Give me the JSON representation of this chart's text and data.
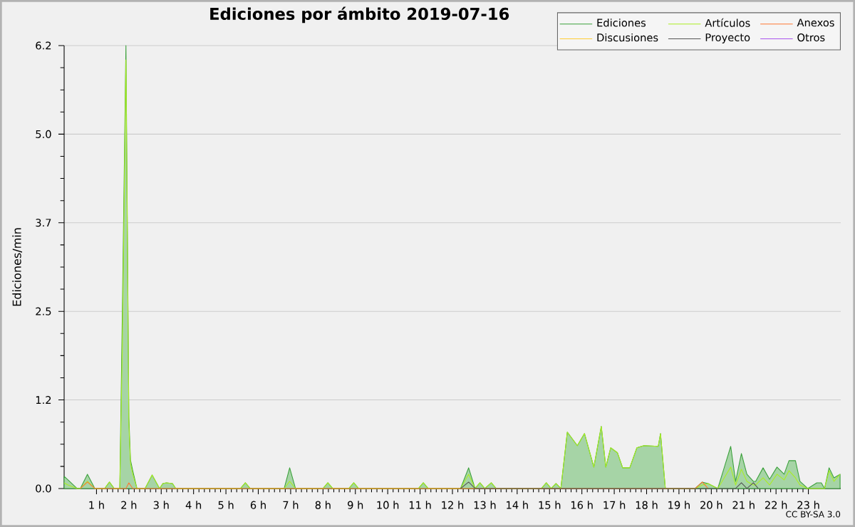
{
  "chart_data": {
    "type": "line",
    "title": "Ediciones por ámbito  2019-07-16",
    "ylabel": "Ediciones/min",
    "annotations": [
      "CC BY-SA 3.0"
    ],
    "x": [
      0,
      0.12,
      0.4,
      0.5,
      0.72,
      0.95,
      1.25,
      1.4,
      1.55,
      1.72,
      1.8,
      1.91,
      2.0,
      2.05,
      2.12,
      2.25,
      2.5,
      2.72,
      2.95,
      3.05,
      3.16,
      3.35,
      3.45,
      5.45,
      5.6,
      5.75,
      6.8,
      6.97,
      7.15,
      8.0,
      8.15,
      8.3,
      8.8,
      8.95,
      9.1,
      10.95,
      11.1,
      11.25,
      12.25,
      12.5,
      12.7,
      12.85,
      13.0,
      13.2,
      13.35,
      14.75,
      14.9,
      15.05,
      15.2,
      15.35,
      15.55,
      15.86,
      16.08,
      16.37,
      16.6,
      16.74,
      16.89,
      17.1,
      17.26,
      17.48,
      17.7,
      17.92,
      18.36,
      18.43,
      18.58,
      19.5,
      19.72,
      19.9,
      20.2,
      20.6,
      20.75,
      20.93,
      21.1,
      21.3,
      21.37,
      21.6,
      21.8,
      22.03,
      22.25,
      22.4,
      22.6,
      22.74,
      22.98,
      23.26,
      23.4,
      23.5,
      23.64,
      23.79,
      23.98
    ],
    "series": [
      {
        "name": "Ediciones",
        "type": "area",
        "color": "#3aa03a",
        "values": [
          0.17,
          0.12,
          0,
          0,
          0.2,
          0,
          0,
          0.09,
          0,
          0,
          2.5,
          6.2,
          1.0,
          0.4,
          0.25,
          0,
          0,
          0.19,
          0,
          0.07,
          0.08,
          0.07,
          0,
          0,
          0.08,
          0,
          0,
          0.29,
          0,
          0,
          0.08,
          0,
          0,
          0.08,
          0,
          0,
          0.08,
          0,
          0,
          0.29,
          0,
          0.08,
          0,
          0.08,
          0,
          0,
          0.08,
          0,
          0.07,
          0,
          0.79,
          0.6,
          0.77,
          0.3,
          0.87,
          0.3,
          0.57,
          0.5,
          0.29,
          0.29,
          0.57,
          0.6,
          0.59,
          0.77,
          0,
          0,
          0.09,
          0.07,
          0,
          0.59,
          0.1,
          0.49,
          0.2,
          0.1,
          0.1,
          0.29,
          0.13,
          0.3,
          0.2,
          0.39,
          0.39,
          0.1,
          0,
          0.08,
          0.08,
          0,
          0.29,
          0.15,
          0.2
        ]
      },
      {
        "name": "Artículos",
        "color": "#aaee22",
        "values": [
          0.08,
          0.05,
          0,
          0,
          0.1,
          0,
          0,
          0.09,
          0,
          0,
          2.0,
          6.0,
          0.9,
          0.35,
          0.2,
          0,
          0,
          0.19,
          0,
          0.07,
          0.08,
          0.07,
          0,
          0,
          0.08,
          0,
          0,
          0.1,
          0,
          0,
          0.08,
          0,
          0,
          0.08,
          0,
          0,
          0.08,
          0,
          0,
          0.2,
          0,
          0.08,
          0,
          0.08,
          0,
          0,
          0.08,
          0,
          0.07,
          0,
          0.79,
          0.6,
          0.77,
          0.3,
          0.87,
          0.3,
          0.57,
          0.5,
          0.29,
          0.29,
          0.57,
          0.6,
          0.59,
          0.77,
          0,
          0,
          0.05,
          0.07,
          0,
          0.3,
          0.05,
          0.27,
          0.1,
          0.05,
          0.05,
          0.15,
          0.05,
          0.2,
          0.12,
          0.25,
          0.15,
          0.05,
          0,
          null,
          0,
          0,
          0.25,
          0.1,
          0.2
        ]
      },
      {
        "name": "Anexos",
        "color": "#ff7733",
        "x": [
          0.5,
          0.72,
          0.95,
          1.91,
          2.0,
          2.12,
          19.5,
          19.72,
          19.9
        ],
        "values": [
          0,
          0.09,
          0,
          0,
          0.08,
          0,
          0,
          0.09,
          0
        ]
      },
      {
        "name": "Discusiones",
        "color": "#ffcc33",
        "values": [
          null,
          null,
          null,
          null,
          null,
          null,
          null,
          null,
          null,
          null,
          null,
          null,
          null,
          null,
          null,
          null,
          null,
          null,
          null,
          null,
          null,
          null,
          null,
          null,
          null,
          null,
          null,
          null,
          null,
          null,
          null,
          null,
          null,
          null,
          null,
          null,
          null,
          null,
          null,
          null,
          null,
          null,
          null,
          null,
          null,
          null,
          null,
          null,
          null,
          null,
          null,
          null,
          null,
          null,
          null,
          null,
          null,
          null,
          null,
          null,
          null,
          null,
          null,
          null,
          null,
          null,
          null,
          null,
          null,
          null,
          null,
          null,
          null,
          null,
          null,
          null,
          null,
          null,
          null,
          null,
          null,
          null,
          null,
          null,
          null,
          null,
          null,
          null,
          null
        ]
      },
      {
        "name": "Proyecto",
        "color": "#555555",
        "x": [
          12.25,
          12.5,
          12.7,
          20.75,
          20.93,
          21.1,
          21.3,
          21.45
        ],
        "values": [
          0,
          0.09,
          0,
          0,
          0.08,
          0,
          0.08,
          0
        ]
      },
      {
        "name": "Otros",
        "color": "#aa55ee",
        "values": [
          null,
          null,
          null,
          null,
          null,
          null,
          null,
          null,
          null,
          null,
          null,
          null,
          null,
          null,
          null,
          null,
          null,
          null,
          null,
          null,
          null,
          null,
          null,
          null,
          null,
          null,
          null,
          null,
          null,
          null,
          null,
          null,
          null,
          null,
          null,
          null,
          null,
          null,
          null,
          null,
          null,
          null,
          null,
          null,
          null,
          null,
          null,
          null,
          null,
          null,
          null,
          null,
          null,
          null,
          null,
          null,
          null,
          null,
          null,
          null,
          null,
          null,
          null,
          null,
          null,
          null,
          null,
          null,
          null,
          null,
          null,
          null,
          null,
          null,
          null,
          null,
          null,
          null,
          null,
          null,
          null,
          null,
          null,
          null,
          null,
          null,
          null,
          null,
          null
        ]
      }
    ],
    "xlim": [
      0,
      24
    ],
    "xticks": [
      {
        "value": 1,
        "label": "1 h"
      },
      {
        "value": 2,
        "label": "2 h"
      },
      {
        "value": 3,
        "label": "3 h"
      },
      {
        "value": 4,
        "label": "4 h"
      },
      {
        "value": 5,
        "label": "5 h"
      },
      {
        "value": 6,
        "label": "6 h"
      },
      {
        "value": 7,
        "label": "7 h"
      },
      {
        "value": 8,
        "label": "8 h"
      },
      {
        "value": 9,
        "label": "9 h"
      },
      {
        "value": 10,
        "label": "10 h"
      },
      {
        "value": 11,
        "label": "11 h"
      },
      {
        "value": 12,
        "label": "12 h"
      },
      {
        "value": 13,
        "label": "13 h"
      },
      {
        "value": 14,
        "label": "14 h"
      },
      {
        "value": 15,
        "label": "15 h"
      },
      {
        "value": 16,
        "label": "16 h"
      },
      {
        "value": 17,
        "label": "17 h"
      },
      {
        "value": 18,
        "label": "18 h"
      },
      {
        "value": 19,
        "label": "19 h"
      },
      {
        "value": 20,
        "label": "20 h"
      },
      {
        "value": 21,
        "label": "21 h"
      },
      {
        "value": 22,
        "label": "22 h"
      },
      {
        "value": 23,
        "label": "23 h"
      }
    ],
    "ylim": [
      0,
      6.2
    ],
    "yticks": [
      {
        "value": 0,
        "label": "0.0"
      },
      {
        "value": 1.24,
        "label": "1.2"
      },
      {
        "value": 2.48,
        "label": "2.5"
      },
      {
        "value": 3.72,
        "label": "3.7"
      },
      {
        "value": 4.96,
        "label": "5.0"
      },
      {
        "value": 6.2,
        "label": "6.2"
      }
    ],
    "grid": "y",
    "legend": "top right"
  }
}
